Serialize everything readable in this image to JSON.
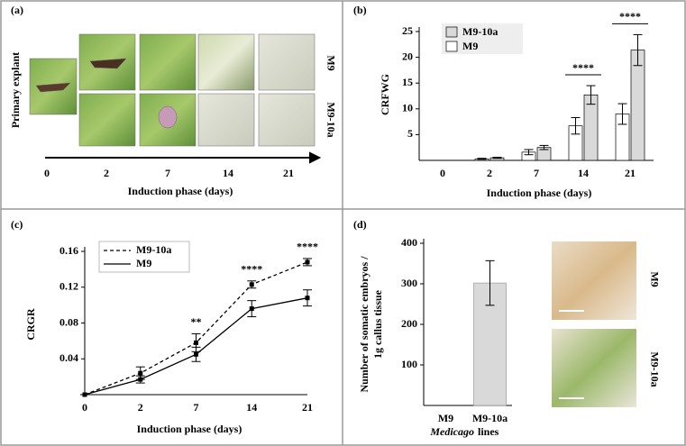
{
  "panel_a": {
    "label": "(a)",
    "column_label": "Primary explant",
    "row_labels": [
      "M9",
      "M9-10a"
    ],
    "timeline_ticks": [
      "0",
      "2",
      "7",
      "14",
      "21"
    ],
    "xlabel": "Induction phase (days)"
  },
  "chart_data": [
    {
      "type": "bar",
      "panel": "(b)",
      "ylabel": "CRFWG",
      "xlabel": "Induction phase (days)",
      "categories": [
        "0",
        "2",
        "7",
        "14",
        "21"
      ],
      "series": [
        {
          "name": "M9-10a",
          "color": "#d9d9d9",
          "values": [
            0,
            0.5,
            2.5,
            12.7,
            21.4
          ],
          "errors": [
            0,
            0.1,
            0.4,
            1.8,
            3.0
          ]
        },
        {
          "name": "M9",
          "color": "#ffffff",
          "values": [
            0,
            0.3,
            1.6,
            6.7,
            9.0
          ],
          "errors": [
            0,
            0.1,
            0.5,
            1.6,
            2.0
          ]
        }
      ],
      "ylim": [
        0,
        25
      ],
      "yticks": [
        5,
        10,
        15,
        20,
        25
      ],
      "annotations": [
        {
          "text": "****",
          "category": "14"
        },
        {
          "text": "****",
          "category": "21"
        }
      ]
    },
    {
      "type": "line",
      "panel": "(c)",
      "ylabel": "CRGR",
      "xlabel": "Induction phase (days)",
      "categories": [
        "0",
        "2",
        "7",
        "14",
        "21"
      ],
      "series": [
        {
          "name": "M9-10a",
          "color": "#000000",
          "line_style": "dashed",
          "values": [
            0,
            0.024,
            0.058,
            0.123,
            0.148
          ],
          "errors": [
            0,
            0.007,
            0.01,
            0.004,
            0.004
          ]
        },
        {
          "name": "M9",
          "color": "#000000",
          "line_style": "solid",
          "values": [
            0,
            0.017,
            0.045,
            0.096,
            0.108
          ],
          "errors": [
            0,
            0.004,
            0.008,
            0.009,
            0.009
          ]
        }
      ],
      "ylim": [
        0,
        0.16
      ],
      "yticks": [
        0.04,
        0.08,
        0.12,
        0.16
      ],
      "annotations": [
        {
          "text": "**",
          "category": "7"
        },
        {
          "text": "****",
          "category": "14"
        },
        {
          "text": "****",
          "category": "21"
        }
      ]
    },
    {
      "type": "bar",
      "panel": "(d)",
      "ylabel": [
        "Number of somatic embryos /",
        "1g callus tissue"
      ],
      "xlabel": [
        "Medicago",
        "lines"
      ],
      "categories": [
        "M9",
        "M9-10a"
      ],
      "values": [
        0,
        302
      ],
      "errors": [
        0,
        55
      ],
      "color": "#d9d9d9",
      "ylim": [
        0,
        400
      ],
      "yticks": [
        100,
        200,
        300,
        400
      ],
      "photo_labels": [
        "M9",
        "M9-10a"
      ]
    }
  ]
}
